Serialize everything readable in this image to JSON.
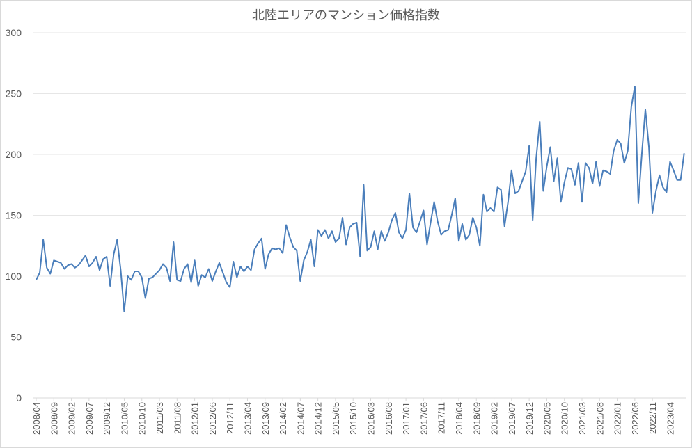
{
  "chart_data": {
    "type": "line",
    "title": "北陸エリアのマンション価格指数",
    "xlabel": "",
    "ylabel": "",
    "ylim": [
      0,
      300
    ],
    "yticks": [
      0,
      50,
      100,
      150,
      200,
      250,
      300
    ],
    "grid": true,
    "legend": null,
    "x_start": "2008/04",
    "x_end": "2023/08",
    "xtick_labels": [
      "2008/04",
      "2008/09",
      "2009/02",
      "2009/07",
      "2009/12",
      "2010/05",
      "2010/10",
      "2011/03",
      "2011/08",
      "2012/01",
      "2012/06",
      "2012/11",
      "2013/04",
      "2013/09",
      "2014/02",
      "2014/07",
      "2014/12",
      "2015/05",
      "2015/10",
      "2016/03",
      "2016/08",
      "2017/01",
      "2017/06",
      "2017/11",
      "2018/04",
      "2018/09",
      "2019/02",
      "2019/07",
      "2019/12",
      "2020/05",
      "2020/10",
      "2021/03",
      "2021/08",
      "2022/01",
      "2022/06",
      "2022/11",
      "2023/04"
    ],
    "series": [
      {
        "name": "北陸エリア",
        "color": "#4a7ebb",
        "values": [
          97,
          103,
          130,
          107,
          102,
          113,
          112,
          111,
          106,
          109,
          110,
          107,
          109,
          113,
          117,
          108,
          111,
          116,
          105,
          114,
          116,
          92,
          118,
          130,
          105,
          71,
          100,
          97,
          104,
          104,
          99,
          82,
          98,
          99,
          102,
          105,
          110,
          107,
          96,
          128,
          97,
          96,
          106,
          110,
          95,
          113,
          92,
          101,
          99,
          106,
          96,
          104,
          111,
          103,
          95,
          91,
          112,
          99,
          108,
          104,
          108,
          105,
          122,
          127,
          131,
          106,
          118,
          123,
          122,
          123,
          119,
          142,
          132,
          124,
          121,
          96,
          113,
          120,
          130,
          108,
          138,
          133,
          138,
          131,
          137,
          128,
          131,
          148,
          126,
          140,
          143,
          144,
          116,
          175,
          121,
          124,
          137,
          122,
          137,
          129,
          136,
          146,
          152,
          136,
          131,
          138,
          168,
          140,
          136,
          145,
          154,
          126,
          144,
          161,
          145,
          134,
          137,
          138,
          150,
          164,
          129,
          143,
          130,
          134,
          148,
          140,
          125,
          167,
          153,
          156,
          153,
          173,
          171,
          141,
          161,
          187,
          168,
          170,
          178,
          186,
          207,
          146,
          197,
          227,
          170,
          190,
          206,
          178,
          197,
          161,
          177,
          189,
          188,
          175,
          193,
          161,
          193,
          189,
          176,
          194,
          174,
          187,
          186,
          184,
          203,
          212,
          209,
          193,
          203,
          239,
          256,
          160,
          201,
          237,
          206,
          152,
          170,
          183,
          173,
          169,
          194,
          187,
          179,
          179,
          201
        ]
      }
    ]
  },
  "colors": {
    "line": "#4a7ebb",
    "grid": "#e6e6e6",
    "text": "#595959"
  }
}
